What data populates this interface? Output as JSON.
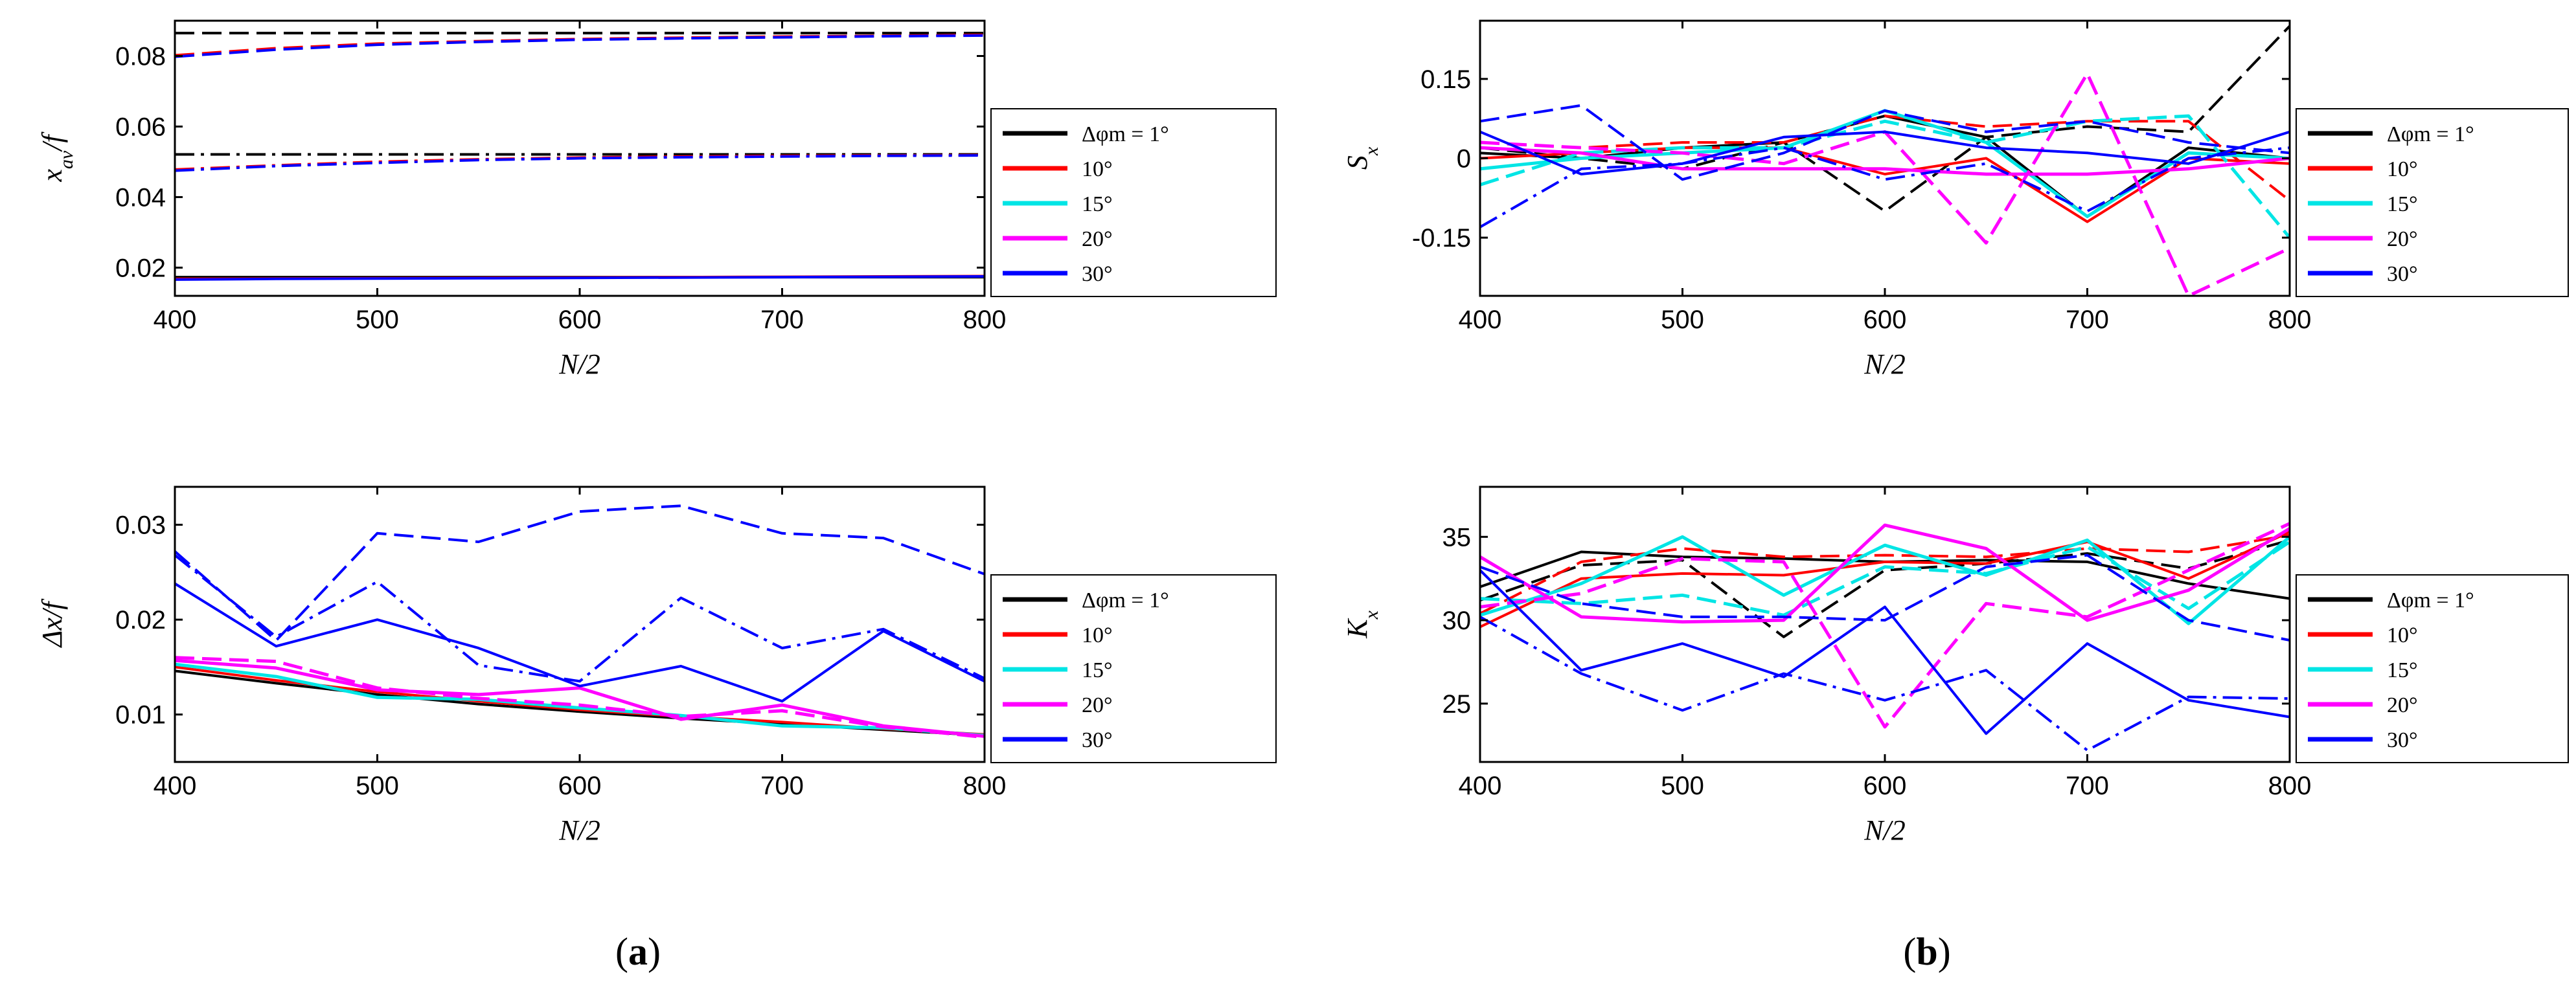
{
  "figure_labels": {
    "a": "a",
    "b": "b"
  },
  "colors": {
    "1": "#000000",
    "10": "#ff0000",
    "15": "#00e5e5",
    "20": "#ff00ff",
    "30": "#0000ff"
  },
  "chart_data": [
    {
      "id": "xav",
      "type": "line",
      "title": "",
      "xlabel": "N/2",
      "ylabel": "x_av/f",
      "xlim": [
        400,
        800
      ],
      "ylim": [
        0.012,
        0.09
      ],
      "xticks": [
        400,
        500,
        600,
        700,
        800
      ],
      "yticks": [
        0.02,
        0.04,
        0.06,
        0.08
      ],
      "ytick_labels": [
        "0.02",
        "0.04",
        "0.06",
        "0.08"
      ],
      "legend": [
        "Δφm = 1°",
        "10°",
        "15°",
        "20°",
        "30°"
      ],
      "x": [
        400,
        450,
        500,
        550,
        600,
        650,
        700,
        750,
        800
      ],
      "series": [
        {
          "name": "1 solid",
          "color": "1",
          "dash": "solid",
          "values": [
            0.0173,
            0.0173,
            0.0173,
            0.0173,
            0.0173,
            0.0173,
            0.0173,
            0.0173,
            0.0173
          ]
        },
        {
          "name": "1 dashdot",
          "color": "1",
          "dash": "dashdot",
          "values": [
            0.0521,
            0.0521,
            0.0521,
            0.0521,
            0.0521,
            0.0521,
            0.0521,
            0.0521,
            0.0521
          ]
        },
        {
          "name": "1 dash",
          "color": "1",
          "dash": "dash",
          "values": [
            0.0865,
            0.0865,
            0.0865,
            0.0865,
            0.0865,
            0.0865,
            0.0865,
            0.0865,
            0.0865
          ]
        },
        {
          "name": "10 solid",
          "color": "10",
          "dash": "solid",
          "values": [
            0.0168,
            0.0169,
            0.017,
            0.0171,
            0.0172,
            0.0173,
            0.0174,
            0.0175,
            0.0176
          ]
        },
        {
          "name": "10 dashdot",
          "color": "10",
          "dash": "dashdot",
          "values": [
            0.0478,
            0.049,
            0.05,
            0.0507,
            0.0512,
            0.0515,
            0.0517,
            0.0518,
            0.0519
          ]
        },
        {
          "name": "10 dash",
          "color": "10",
          "dash": "dash",
          "values": [
            0.0802,
            0.0822,
            0.0835,
            0.0842,
            0.0848,
            0.0852,
            0.0855,
            0.0857,
            0.086
          ]
        },
        {
          "name": "30 solid",
          "color": "30",
          "dash": "solid",
          "values": [
            0.0166,
            0.0168,
            0.0169,
            0.017,
            0.0171,
            0.0172,
            0.0173,
            0.0174,
            0.0175
          ]
        },
        {
          "name": "30 dashdot",
          "color": "30",
          "dash": "dashdot",
          "values": [
            0.0475,
            0.0488,
            0.0497,
            0.0505,
            0.051,
            0.0513,
            0.0515,
            0.0517,
            0.0518
          ]
        },
        {
          "name": "30 dash",
          "color": "30",
          "dash": "dash",
          "values": [
            0.0798,
            0.0818,
            0.0832,
            0.084,
            0.0846,
            0.085,
            0.0853,
            0.0856,
            0.0858
          ]
        }
      ]
    },
    {
      "id": "sx",
      "type": "line",
      "title": "",
      "xlabel": "N/2",
      "ylabel": "S_x",
      "xlim": [
        400,
        800
      ],
      "ylim": [
        -0.26,
        0.26
      ],
      "xticks": [
        400,
        500,
        600,
        700,
        800
      ],
      "yticks": [
        -0.15,
        0,
        0.15
      ],
      "ytick_labels": [
        "-0.15",
        "0",
        "0.15"
      ],
      "legend": [
        "Δφm = 1°",
        "10°",
        "15°",
        "20°",
        "30°"
      ],
      "x": [
        400,
        450,
        500,
        550,
        600,
        650,
        700,
        750,
        800
      ],
      "series": [
        {
          "name": "1 solid",
          "color": "1",
          "dash": "solid",
          "values": [
            0.01,
            0.0,
            0.02,
            0.03,
            0.08,
            0.04,
            -0.11,
            0.02,
            0.0
          ]
        },
        {
          "name": "1 dash",
          "color": "1",
          "dash": "dash",
          "values": [
            0.02,
            0.0,
            -0.02,
            0.03,
            -0.1,
            0.04,
            0.06,
            0.05,
            0.25
          ]
        },
        {
          "name": "10 solid",
          "color": "10",
          "dash": "solid",
          "values": [
            0.0,
            0.01,
            0.02,
            0.02,
            -0.03,
            0.0,
            -0.12,
            0.0,
            -0.01
          ]
        },
        {
          "name": "10 dash",
          "color": "10",
          "dash": "dash",
          "values": [
            0.03,
            0.02,
            0.03,
            0.03,
            0.08,
            0.06,
            0.07,
            0.07,
            -0.08
          ]
        },
        {
          "name": "15 solid",
          "color": "15",
          "dash": "solid",
          "values": [
            -0.02,
            0.0,
            0.01,
            0.02,
            0.09,
            0.03,
            -0.11,
            0.01,
            0.0
          ]
        },
        {
          "name": "15 dash",
          "color": "15",
          "dash": "dash",
          "values": [
            -0.05,
            0.01,
            0.02,
            0.02,
            0.07,
            0.03,
            0.07,
            0.08,
            -0.15
          ]
        },
        {
          "name": "20 solid",
          "color": "20",
          "dash": "solid",
          "values": [
            0.02,
            0.01,
            -0.02,
            -0.02,
            -0.02,
            -0.03,
            -0.03,
            -0.02,
            0.0
          ]
        },
        {
          "name": "20 dash",
          "color": "20",
          "dash": "dash",
          "values": [
            0.03,
            0.02,
            0.01,
            -0.01,
            0.05,
            -0.16,
            0.16,
            -0.26,
            -0.17
          ]
        },
        {
          "name": "30 solid",
          "color": "30",
          "dash": "solid",
          "values": [
            0.05,
            -0.03,
            -0.01,
            0.04,
            0.05,
            0.02,
            0.01,
            -0.01,
            0.05
          ]
        },
        {
          "name": "30 dash",
          "color": "30",
          "dash": "dash",
          "values": [
            0.07,
            0.1,
            -0.04,
            0.01,
            0.09,
            0.05,
            0.07,
            0.03,
            0.01
          ]
        },
        {
          "name": "30 dashdot",
          "color": "30",
          "dash": "dashdot",
          "values": [
            -0.13,
            -0.02,
            -0.01,
            0.02,
            -0.04,
            -0.01,
            -0.1,
            0.0,
            0.02
          ]
        }
      ]
    },
    {
      "id": "dx",
      "type": "line",
      "title": "",
      "xlabel": "N/2",
      "ylabel": "Δx/f",
      "xlim": [
        400,
        800
      ],
      "ylim": [
        0.005,
        0.034
      ],
      "xticks": [
        400,
        500,
        600,
        700,
        800
      ],
      "yticks": [
        0.01,
        0.02,
        0.03
      ],
      "ytick_labels": [
        "0.01",
        "0.02",
        "0.03"
      ],
      "legend": [
        "Δφm = 1°",
        "10°",
        "15°",
        "20°",
        "30°"
      ],
      "x": [
        400,
        450,
        500,
        550,
        600,
        650,
        700,
        750,
        800
      ],
      "series": [
        {
          "name": "1 solid",
          "color": "1",
          "dash": "solid",
          "values": [
            0.0146,
            0.0133,
            0.0121,
            0.0111,
            0.0103,
            0.0096,
            0.009,
            0.0084,
            0.0078
          ]
        },
        {
          "name": "10 solid",
          "color": "10",
          "dash": "solid",
          "values": [
            0.015,
            0.0136,
            0.0124,
            0.0114,
            0.0105,
            0.0098,
            0.0092,
            0.0085,
            0.0079
          ]
        },
        {
          "name": "15 solid",
          "color": "15",
          "dash": "solid",
          "values": [
            0.0153,
            0.014,
            0.0118,
            0.0116,
            0.0107,
            0.0099,
            0.0088,
            0.0086,
            0.0078
          ]
        },
        {
          "name": "20 solid",
          "color": "20",
          "dash": "solid",
          "values": [
            0.0157,
            0.0149,
            0.0126,
            0.0121,
            0.0128,
            0.0095,
            0.011,
            0.0088,
            0.0077
          ]
        },
        {
          "name": "20 dash",
          "color": "20",
          "dash": "dash",
          "values": [
            0.016,
            0.0156,
            0.0128,
            0.0117,
            0.011,
            0.0098,
            0.0104,
            0.0087,
            0.0076
          ]
        },
        {
          "name": "30 solid",
          "color": "30",
          "dash": "solid",
          "values": [
            0.0238,
            0.0172,
            0.02,
            0.017,
            0.013,
            0.0151,
            0.0114,
            0.0188,
            0.0135
          ]
        },
        {
          "name": "30 dash",
          "color": "30",
          "dash": "dash",
          "values": [
            0.0272,
            0.0178,
            0.0291,
            0.0282,
            0.0314,
            0.032,
            0.0291,
            0.0286,
            0.0248
          ]
        },
        {
          "name": "30 dashdot",
          "color": "30",
          "dash": "dashdot",
          "values": [
            0.0268,
            0.0182,
            0.024,
            0.0152,
            0.0135,
            0.0223,
            0.017,
            0.019,
            0.0138
          ]
        }
      ]
    },
    {
      "id": "kx",
      "type": "line",
      "title": "",
      "xlabel": "N/2",
      "ylabel": "K_x",
      "xlim": [
        400,
        800
      ],
      "ylim": [
        21.5,
        38
      ],
      "xticks": [
        400,
        500,
        600,
        700,
        800
      ],
      "yticks": [
        25,
        30,
        35
      ],
      "ytick_labels": [
        "25",
        "30",
        "35"
      ],
      "legend": [
        "Δφm = 1°",
        "10°",
        "15°",
        "20°",
        "30°"
      ],
      "x": [
        400,
        450,
        500,
        550,
        600,
        650,
        700,
        750,
        800
      ],
      "series": [
        {
          "name": "1 solid",
          "color": "1",
          "dash": "solid",
          "values": [
            32.0,
            34.1,
            33.8,
            33.7,
            33.5,
            33.6,
            33.5,
            32.2,
            31.3
          ]
        },
        {
          "name": "1 dash",
          "color": "1",
          "dash": "dash",
          "values": [
            31.2,
            33.3,
            33.6,
            29.0,
            33.0,
            33.4,
            34.0,
            33.1,
            34.8
          ]
        },
        {
          "name": "10 solid",
          "color": "10",
          "dash": "solid",
          "values": [
            29.6,
            32.5,
            32.8,
            32.7,
            33.5,
            33.4,
            34.7,
            32.5,
            35.3
          ]
        },
        {
          "name": "10 dash",
          "color": "10",
          "dash": "dash",
          "values": [
            30.4,
            33.5,
            34.3,
            33.8,
            33.9,
            33.8,
            34.3,
            34.1,
            35.1
          ]
        },
        {
          "name": "15 solid",
          "color": "15",
          "dash": "solid",
          "values": [
            30.3,
            32.2,
            35.0,
            31.5,
            34.5,
            32.7,
            34.8,
            29.8,
            35.0
          ]
        },
        {
          "name": "15 dash",
          "color": "15",
          "dash": "dash",
          "values": [
            31.3,
            31.0,
            31.5,
            30.3,
            33.2,
            32.8,
            34.4,
            30.7,
            34.7
          ]
        },
        {
          "name": "20 solid",
          "color": "20",
          "dash": "solid",
          "values": [
            33.8,
            30.2,
            29.9,
            30.0,
            35.7,
            34.3,
            30.0,
            31.8,
            35.5
          ]
        },
        {
          "name": "20 dash",
          "color": "20",
          "dash": "dash",
          "values": [
            30.8,
            31.6,
            33.7,
            33.5,
            23.6,
            31.0,
            30.2,
            33.0,
            35.8
          ]
        },
        {
          "name": "30 solid",
          "color": "30",
          "dash": "solid",
          "values": [
            33.0,
            27.0,
            28.6,
            26.6,
            30.8,
            23.2,
            28.6,
            25.2,
            24.2
          ]
        },
        {
          "name": "30 dash",
          "color": "30",
          "dash": "dash",
          "values": [
            33.2,
            31.0,
            30.2,
            30.2,
            30.0,
            33.2,
            33.9,
            30.0,
            28.8
          ]
        },
        {
          "name": "30 dashdot",
          "color": "30",
          "dash": "dashdot",
          "values": [
            30.2,
            26.8,
            24.6,
            26.8,
            25.2,
            27.0,
            22.2,
            25.4,
            25.3
          ]
        }
      ]
    }
  ]
}
